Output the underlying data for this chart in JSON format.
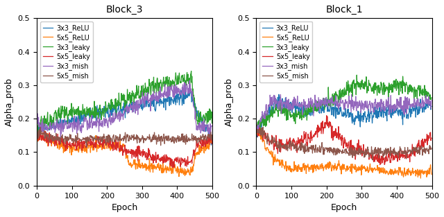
{
  "titles": [
    "Block_3",
    "Block_1"
  ],
  "xlabel": "Epoch",
  "ylabel": "Alpha_prob",
  "xlim": [
    0,
    500
  ],
  "ylim": [
    0.0,
    0.5
  ],
  "yticks": [
    0.0,
    0.1,
    0.2,
    0.3,
    0.4,
    0.5
  ],
  "n_epochs": 500,
  "colors": {
    "3x3_ReLU": "#1f77b4",
    "5x5_ReLU": "#ff7f0e",
    "3x3_leaky": "#2ca02c",
    "5x5_leaky": "#d62728",
    "3x3_mish": "#9467bd",
    "5x5_mish": "#8c564b"
  },
  "legend_labels": [
    "3x3_ReLU",
    "5x5_ReLU",
    "3x3_leaky",
    "5x5_leaky",
    "3x3_mish",
    "5x5_mish"
  ],
  "figsize": [
    6.4,
    3.13
  ],
  "dpi": 100
}
